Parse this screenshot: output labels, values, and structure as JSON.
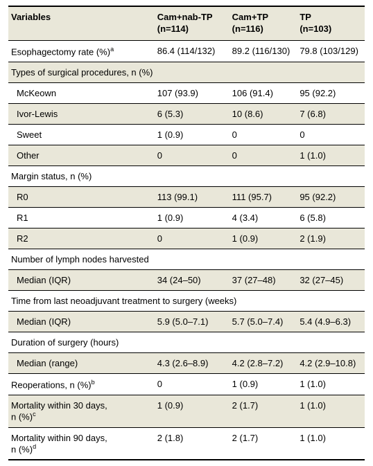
{
  "colors": {
    "shade_bg": "#e9e7d9",
    "border": "#000000",
    "text": "#000000",
    "page_bg": "#ffffff"
  },
  "typography": {
    "header_fontsize_pt": 10,
    "body_fontsize_pt": 10,
    "header_fontweight": "bold",
    "body_fontweight": "normal",
    "font_family": "Arial, Helvetica, sans-serif"
  },
  "columns": {
    "var": "Variables",
    "a": {
      "l1": "Cam+nab-TP",
      "l2": "(n=114)"
    },
    "b": {
      "l1": "Cam+TP",
      "l2": "(n=116)"
    },
    "c": {
      "l1": "TP",
      "l2": "(n=103)"
    }
  },
  "rows": {
    "esoph": {
      "label": "Esophagectomy rate (%)",
      "sup": "a",
      "a": "86.4 (114/132)",
      "b": "89.2 (116/130)",
      "c": "79.8 (103/129)"
    },
    "types_hdr": "Types of surgical procedures, n (%)",
    "mckeown": {
      "label": "McKeown",
      "a": "107 (93.9)",
      "b": "106 (91.4)",
      "c": "95 (92.2)"
    },
    "ivorlewis": {
      "label": "Ivor-Lewis",
      "a": "6 (5.3)",
      "b": "10 (8.6)",
      "c": "7 (6.8)"
    },
    "sweet": {
      "label": "Sweet",
      "a": "1 (0.9)",
      "b": "0",
      "c": "0"
    },
    "other": {
      "label": "Other",
      "a": "0",
      "b": "0",
      "c": "1 (1.0)"
    },
    "margin_hdr": "Margin status, n (%)",
    "r0": {
      "label": "R0",
      "a": "113 (99.1)",
      "b": "111 (95.7)",
      "c": "95 (92.2)"
    },
    "r1": {
      "label": "R1",
      "a": "1 (0.9)",
      "b": "4 (3.4)",
      "c": "6 (5.8)"
    },
    "r2": {
      "label": "R2",
      "a": "0",
      "b": "1 (0.9)",
      "c": "2 (1.9)"
    },
    "lymph_hdr": "Number of lymph nodes harvested",
    "lymph_med": {
      "label": "Median (IQR)",
      "a": "34 (24–50)",
      "b": "37 (27–48)",
      "c": "32 (27–45)"
    },
    "time_hdr": "Time from last neoadjuvant treatment to surgery (weeks)",
    "time_med": {
      "label": "Median (IQR)",
      "a": "5.9 (5.0–7.1)",
      "b": "5.7 (5.0–7.4)",
      "c": "5.4 (4.9–6.3)"
    },
    "dur_hdr": "Duration of surgery (hours)",
    "dur_med": {
      "label": "Median (range)",
      "a": "4.3 (2.6–8.9)",
      "b": "4.2 (2.8–7.2)",
      "c": "4.2 (2.9–10.8)"
    },
    "reop": {
      "label": "Reoperations, n (%)",
      "sup": "b",
      "a": "0",
      "b": "1 (0.9)",
      "c": "1 (1.0)"
    },
    "mort30": {
      "label1": "Mortality within 30 days,",
      "label2": "n (%)",
      "sup": "c",
      "a": "1 (0.9)",
      "b": "2 (1.7)",
      "c": "1 (1.0)"
    },
    "mort90": {
      "label1": "Mortality within 90 days,",
      "label2": "n (%)",
      "sup": "d",
      "a": "2 (1.8)",
      "b": "2 (1.7)",
      "c": "1 (1.0)"
    }
  }
}
